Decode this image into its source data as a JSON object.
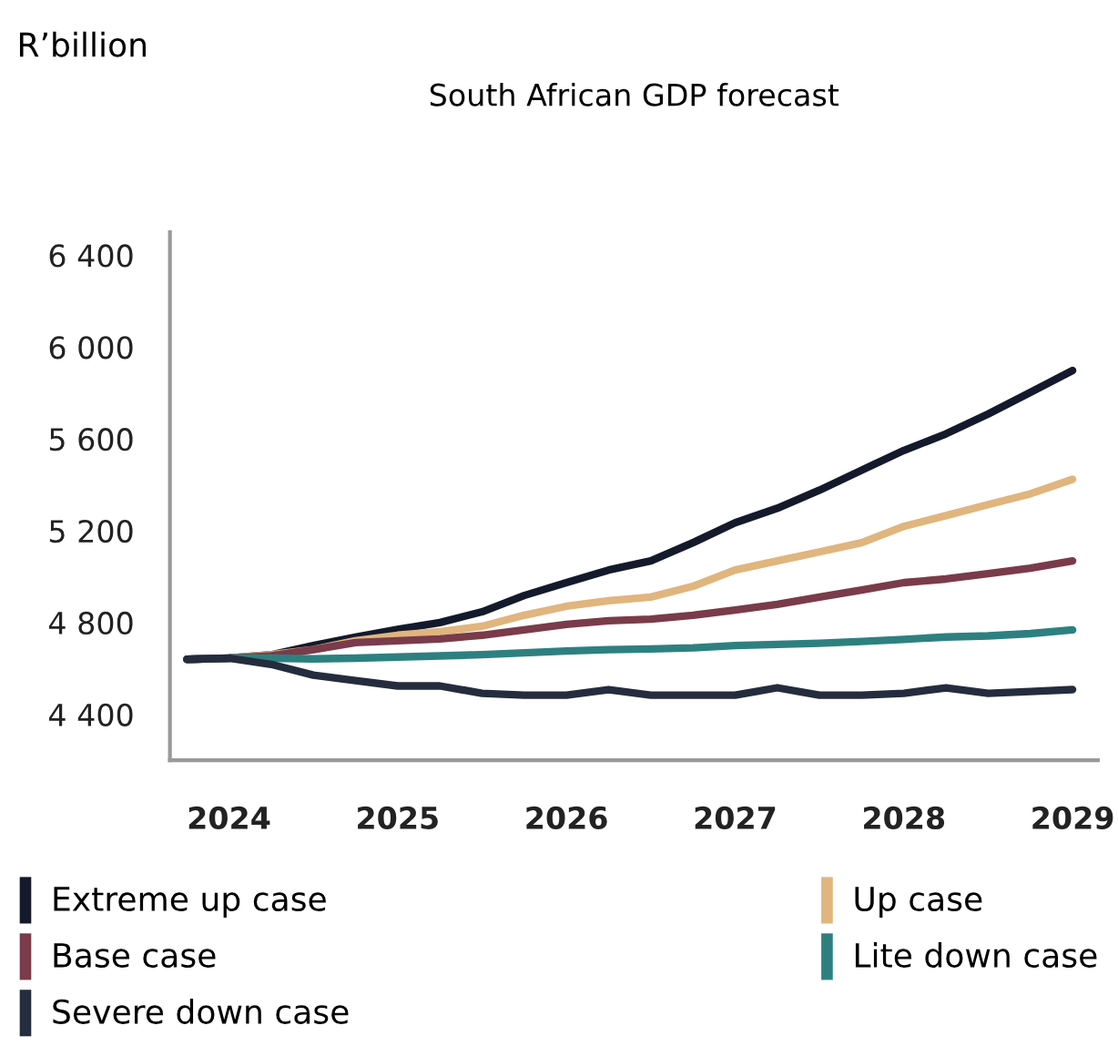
{
  "chart_data": {
    "type": "line",
    "title": "South African GDP forecast",
    "annotations": [
      "R’billion"
    ],
    "x": [
      2023.75,
      2024.0,
      2024.25,
      2024.5,
      2024.75,
      2025.0,
      2025.25,
      2025.5,
      2025.75,
      2026.0,
      2026.25,
      2026.5,
      2026.75,
      2027.0,
      2027.25,
      2027.5,
      2027.75,
      2028.0,
      2028.25,
      2028.5,
      2028.75,
      2029.0
    ],
    "series": [
      {
        "name": "Extreme up case",
        "color": "#141a2b",
        "values": [
          4640,
          4645,
          4660,
          4700,
          4737,
          4770,
          4800,
          4847,
          4918,
          4974,
          5029,
          5069,
          5148,
          5235,
          5298,
          5377,
          5464,
          5550,
          5622,
          5709,
          5803,
          5898
        ]
      },
      {
        "name": "Up case",
        "color": "#e0b57e",
        "values": [
          4640,
          4645,
          4660,
          4682,
          4721,
          4745,
          4760,
          4784,
          4832,
          4871,
          4895,
          4911,
          4958,
          5029,
          5069,
          5108,
          5148,
          5219,
          5266,
          5314,
          5361,
          5424
        ]
      },
      {
        "name": "Base case",
        "color": "#7a3b4a",
        "values": [
          4640,
          4645,
          4655,
          4682,
          4713,
          4721,
          4729,
          4745,
          4768,
          4792,
          4808,
          4815,
          4832,
          4855,
          4879,
          4911,
          4942,
          4974,
          4990,
          5013,
          5037,
          5069
        ]
      },
      {
        "name": "Lite down case",
        "color": "#2e8080",
        "values": [
          4640,
          4645,
          4645,
          4642,
          4645,
          4650,
          4655,
          4660,
          4668,
          4676,
          4682,
          4685,
          4690,
          4700,
          4705,
          4710,
          4718,
          4727,
          4737,
          4742,
          4752,
          4768
        ]
      },
      {
        "name": "Severe down case",
        "color": "#242c3e",
        "values": [
          4640,
          4645,
          4618,
          4571,
          4547,
          4524,
          4524,
          4492,
          4484,
          4484,
          4508,
          4484,
          4484,
          4484,
          4516,
          4484,
          4484,
          4492,
          4516,
          4492,
          4500,
          4508
        ]
      }
    ],
    "xlim": [
      2023.65,
      2029.15
    ],
    "xticks": [
      2024,
      2025,
      2026,
      2027,
      2028,
      2029
    ],
    "ylim": [
      4200,
      6500
    ],
    "yticks": [
      {
        "value": 4400,
        "label": "4 400"
      },
      {
        "value": 4800,
        "label": "4 800"
      },
      {
        "value": 5200,
        "label": "5 200"
      },
      {
        "value": 5600,
        "label": "5 600"
      },
      {
        "value": 6000,
        "label": "6 000"
      },
      {
        "value": 6400,
        "label": "6 400"
      }
    ],
    "grid": false,
    "legend": "bottom",
    "line_style": "solid",
    "marker": "none"
  }
}
